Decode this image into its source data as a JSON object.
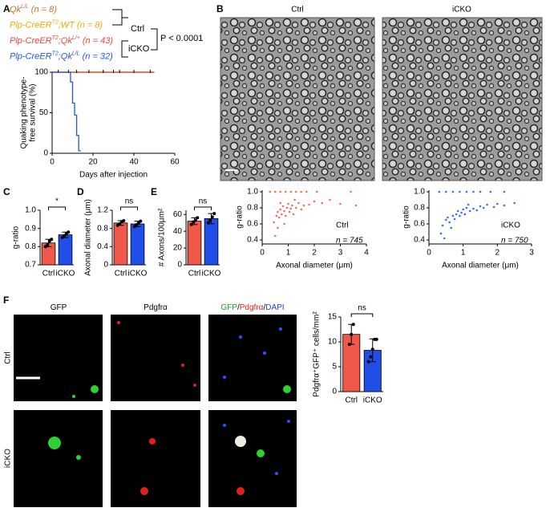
{
  "panel_labels": [
    "A",
    "B",
    "C",
    "D",
    "E",
    "F"
  ],
  "images": {
    "B": {
      "labels": [
        "Ctrl",
        "iCKO"
      ]
    },
    "F": {
      "columns": [
        [
          {
            "text": "GFP",
            "color": "#000000"
          }
        ],
        [
          {
            "text": "Pdgfrα",
            "color": "#000000"
          }
        ],
        [
          {
            "text": "GFP",
            "color": "#1a9e1a"
          },
          {
            "text": "/",
            "color": "#000000"
          },
          {
            "text": "Pdgfrα",
            "color": "#e02020"
          },
          {
            "text": "/",
            "color": "#000000"
          },
          {
            "text": "DAPI",
            "color": "#2040e0"
          }
        ]
      ],
      "rows": [
        "Ctrl",
        "iCKO"
      ]
    }
  },
  "chart_data": [
    {
      "type": "survival",
      "xlabel": "Days after injection",
      "ylabel": [
        "Quaking phenotype-",
        "free survival (%)"
      ],
      "xlim": [
        0,
        60
      ],
      "xticks": [
        0,
        20,
        40,
        60
      ],
      "ylim": [
        0,
        100
      ],
      "yticks": [
        0,
        50,
        100
      ],
      "groups": [
        {
          "label": "Ctrl",
          "color": "#e8453c"
        },
        {
          "label": "iCKO",
          "color": "#2454e0"
        }
      ],
      "p_label": "P < 0.0001",
      "series": [
        {
          "name_parts": [
            "Qk",
            "L/L"
          ],
          "n_label": "(n = 8)",
          "color": "#b5762a",
          "x": [
            0,
            50
          ],
          "values": [
            100,
            100
          ]
        },
        {
          "name_parts": [
            "Plp-CreER",
            "T2",
            ";WT"
          ],
          "n_label": "(n = 8)",
          "color": "#f0a800",
          "x": [
            0,
            50
          ],
          "values": [
            100,
            100
          ]
        },
        {
          "name_parts": [
            "Plp-CreER",
            "T2",
            ";Qk",
            "L/+"
          ],
          "n_label": "(n = 43)",
          "color": "#e8453c",
          "x": [
            0,
            50
          ],
          "values": [
            100,
            100
          ],
          "censor_x": [
            3,
            8,
            12,
            18,
            25,
            30,
            33,
            40,
            48
          ]
        },
        {
          "name_parts": [
            "Plp-CreER",
            "T2",
            ";Qk",
            "L/L"
          ],
          "n_label": "(n = 32)",
          "color": "#2454e0",
          "x": [
            0,
            9,
            9,
            10,
            10,
            11,
            11,
            12,
            12,
            13,
            13,
            14
          ],
          "values": [
            100,
            100,
            88,
            88,
            62,
            62,
            47,
            47,
            22,
            22,
            3,
            3
          ]
        }
      ]
    },
    {
      "type": "scatter",
      "label": "Ctrl",
      "n_label": "n = 745",
      "color": "#f0705a",
      "xlabel": "Axonal diameter (μm)",
      "ylabel": "g-ratio",
      "xlim": [
        0,
        4
      ],
      "xticks": [
        0,
        1,
        2,
        3,
        4
      ],
      "ylim": [
        0.35,
        1.02
      ],
      "yticks": [
        0.4,
        0.6,
        0.8,
        {
          "value": 1,
          "label": "1.0"
        }
      ],
      "x": [
        0.3,
        0.5,
        0.7,
        0.9,
        1.1,
        1.3,
        1.5,
        1.7,
        2.1,
        3.4,
        0.45,
        0.55,
        0.6,
        0.65,
        0.7,
        0.75,
        0.8,
        0.85,
        0.9,
        0.95,
        1.0,
        1.05,
        1.1,
        1.15,
        1.2,
        1.3,
        1.4,
        1.5,
        1.6,
        1.8,
        2.0,
        2.3,
        2.6,
        3.0,
        3.6,
        0.5,
        0.6,
        0.85,
        1.25,
        0.7
      ],
      "values": [
        1.0,
        1.0,
        1.0,
        1.0,
        1.0,
        1.0,
        1.0,
        1.0,
        1.0,
        1.0,
        0.62,
        0.7,
        0.75,
        0.68,
        0.78,
        0.72,
        0.82,
        0.76,
        0.7,
        0.8,
        0.85,
        0.75,
        0.79,
        0.83,
        0.72,
        0.8,
        0.86,
        0.78,
        0.83,
        0.84,
        0.88,
        0.86,
        0.9,
        0.85,
        0.83,
        0.45,
        0.55,
        0.6,
        0.9,
        0.86
      ]
    },
    {
      "type": "scatter",
      "label": "iCKO",
      "n_label": "n = 750",
      "color": "#3a6ef0",
      "xlabel": "Axonal diameter (μm)",
      "ylabel": "g-ratio",
      "xlim": [
        0,
        3
      ],
      "xticks": [
        0,
        1,
        2,
        3
      ],
      "ylim": [
        0.35,
        1.02
      ],
      "yticks": [
        0.4,
        0.6,
        0.8,
        {
          "value": 1,
          "label": "1.0"
        }
      ],
      "x": [
        0.3,
        0.5,
        0.7,
        0.9,
        1.1,
        1.3,
        1.5,
        1.8,
        2.2,
        0.35,
        0.4,
        0.5,
        0.55,
        0.6,
        0.7,
        0.75,
        0.8,
        0.85,
        0.9,
        0.95,
        1.0,
        1.05,
        1.1,
        1.2,
        1.3,
        1.4,
        1.5,
        1.6,
        1.7,
        1.9,
        2.0,
        2.2,
        2.5,
        0.65,
        1.15,
        0.45
      ],
      "values": [
        1.0,
        1.0,
        1.0,
        1.0,
        1.0,
        1.0,
        1.0,
        1.0,
        1.0,
        0.48,
        0.58,
        0.65,
        0.68,
        0.62,
        0.7,
        0.66,
        0.72,
        0.76,
        0.7,
        0.74,
        0.78,
        0.72,
        0.8,
        0.76,
        0.79,
        0.77,
        0.82,
        0.8,
        0.84,
        0.81,
        0.85,
        0.83,
        0.86,
        0.55,
        0.84,
        0.42
      ]
    },
    {
      "type": "bar",
      "ylabel": "g-ratio",
      "categories": [
        "Ctrl",
        "iCKO"
      ],
      "colors": [
        "#f0584a",
        "#1f4fe8"
      ],
      "values": [
        0.82,
        0.865
      ],
      "errors": [
        0.02,
        0.015
      ],
      "points": [
        [
          0.8,
          0.81,
          0.83,
          0.84
        ],
        [
          0.85,
          0.86,
          0.87,
          0.88
        ]
      ],
      "significance": "*",
      "ylim": [
        0.7,
        1.0
      ],
      "yticks": [
        0.7,
        0.8,
        0.9,
        {
          "value": 1,
          "label": "1.0"
        }
      ]
    },
    {
      "type": "bar",
      "ylabel": "Axonal diameter (μm)",
      "categories": [
        "Ctrl",
        "iCKO"
      ],
      "colors": [
        "#f0584a",
        "#1f4fe8"
      ],
      "values": [
        0.92,
        0.9
      ],
      "errors": [
        0.05,
        0.06
      ],
      "points": [
        [
          0.87,
          0.9,
          0.95,
          0.97
        ],
        [
          0.84,
          0.88,
          0.92,
          0.96
        ]
      ],
      "significance": "ns",
      "ylim": [
        0,
        1.2
      ],
      "yticks": [
        0,
        0.4,
        0.8,
        1.2
      ]
    },
    {
      "type": "bar",
      "ylabel": "# Axons/100μm²",
      "categories": [
        "Ctrl",
        "iCKO"
      ],
      "colors": [
        "#f0584a",
        "#1f4fe8"
      ],
      "values": [
        52,
        55
      ],
      "errors": [
        4,
        6
      ],
      "points": [
        [
          48,
          51,
          53,
          56
        ],
        [
          50,
          53,
          57,
          61
        ]
      ],
      "significance": "ns",
      "ylim": [
        0,
        65
      ],
      "yticks": [
        0,
        20,
        40,
        60
      ]
    },
    {
      "type": "bar",
      "ylabel": "Pdgfrα⁺GFP⁺ cells/mm²",
      "categories": [
        "Ctrl",
        "iCKO"
      ],
      "colors": [
        "#f0584a",
        "#1f4fe8"
      ],
      "values": [
        11.5,
        8.3
      ],
      "errors": [
        2,
        2.3
      ],
      "points": [
        [
          9.5,
          11.5,
          13.5
        ],
        [
          6,
          7,
          8.5,
          10.5,
          10.5
        ]
      ],
      "significance": "ns",
      "ylim": [
        0,
        15
      ],
      "yticks": [
        0,
        5,
        10,
        15
      ]
    }
  ]
}
